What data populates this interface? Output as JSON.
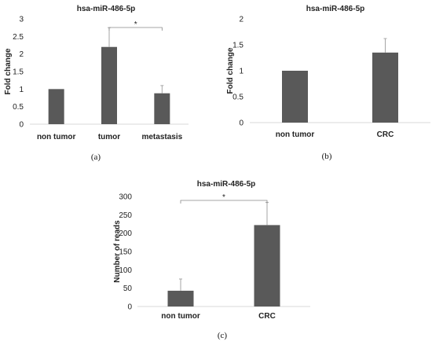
{
  "colors": {
    "bar": "#595959",
    "axis": "#d9d9d9",
    "error": "#a6a6a6"
  },
  "chart_data": [
    {
      "type": "bar",
      "panel_label": "(a)",
      "title": "hsa-miR-486-5p",
      "ylabel": "Fold change",
      "categories": [
        "non tumor",
        "tumor",
        "metastasis"
      ],
      "values": [
        1.0,
        2.2,
        0.88
      ],
      "errors": [
        0.0,
        0.55,
        0.22
      ],
      "ylim": [
        0,
        3
      ],
      "yticks": [
        "0",
        "0.5",
        "1",
        "1.5",
        "2",
        "2.5",
        "3"
      ],
      "significance": {
        "from": 1,
        "to": 2,
        "label": "*"
      }
    },
    {
      "type": "bar",
      "panel_label": "(b)",
      "title": "hsa-miR-486-5p",
      "ylabel": "Fold change",
      "categories": [
        "non tumor",
        "CRC"
      ],
      "values": [
        1.0,
        1.35
      ],
      "errors": [
        0.0,
        0.27
      ],
      "ylim": [
        0,
        2
      ],
      "yticks": [
        "0",
        "0.5",
        "1",
        "1.5",
        "2"
      ]
    },
    {
      "type": "bar",
      "panel_label": "(c)",
      "title": "hsa-miR-486-5p",
      "ylabel": "Number of reads",
      "categories": [
        "non tumor",
        "CRC"
      ],
      "values": [
        43,
        222
      ],
      "errors": [
        32,
        62
      ],
      "ylim": [
        0,
        300
      ],
      "yticks": [
        "0",
        "50",
        "100",
        "150",
        "200",
        "250",
        "300"
      ],
      "significance": {
        "from": 0,
        "to": 1,
        "label": "*"
      }
    }
  ]
}
